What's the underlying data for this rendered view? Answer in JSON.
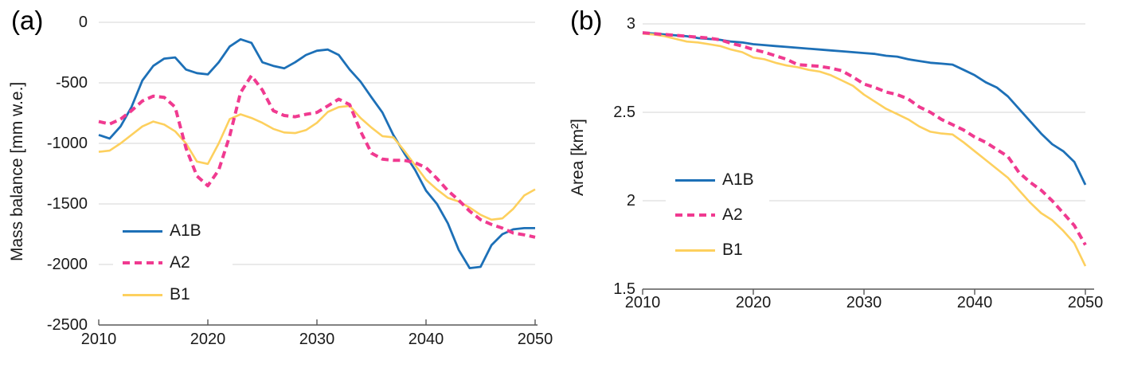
{
  "figure": {
    "background": "#ffffff",
    "panels": [
      {
        "panel_label": "(a)"
      },
      {
        "panel_label": "(b)"
      }
    ]
  },
  "colors": {
    "a1b_blue": "#1d70b7",
    "a2_pink": "#f03a90",
    "b1_yellow": "#fdd05e",
    "gridline": "#d6d6d6",
    "axis": "#595959",
    "text": "#1a1a1a"
  },
  "chart_data": [
    {
      "type": "line",
      "panel": "a",
      "title": "",
      "xlabel": "",
      "ylabel": "Mass balance [mm w.e.]",
      "xlim": [
        2010,
        2050
      ],
      "ylim": [
        -2500,
        0
      ],
      "x_ticks": [
        2010,
        2020,
        2030,
        2040,
        2050
      ],
      "y_ticks": [
        0,
        -500,
        -1000,
        -1500,
        -2000,
        -2500
      ],
      "grid": true,
      "legend_position": "inside lower-left",
      "x": [
        2010,
        2011,
        2012,
        2013,
        2014,
        2015,
        2016,
        2017,
        2018,
        2019,
        2020,
        2021,
        2022,
        2023,
        2024,
        2025,
        2026,
        2027,
        2028,
        2029,
        2030,
        2031,
        2032,
        2033,
        2034,
        2035,
        2036,
        2037,
        2038,
        2039,
        2040,
        2041,
        2042,
        2043,
        2044,
        2045,
        2046,
        2047,
        2048,
        2049,
        2050
      ],
      "series": [
        {
          "name": "A1B",
          "color": "#1d70b7",
          "style": "solid",
          "values": [
            -930,
            -960,
            -860,
            -700,
            -480,
            -360,
            -300,
            -290,
            -390,
            -420,
            -430,
            -330,
            -200,
            -140,
            -170,
            -330,
            -360,
            -380,
            -330,
            -270,
            -235,
            -225,
            -270,
            -390,
            -490,
            -620,
            -745,
            -930,
            -1080,
            -1220,
            -1390,
            -1500,
            -1660,
            -1880,
            -2030,
            -2020,
            -1840,
            -1750,
            -1710,
            -1700,
            -1700
          ]
        },
        {
          "name": "A2",
          "color": "#f03a90",
          "style": "dashed",
          "values": [
            -820,
            -840,
            -800,
            -730,
            -650,
            -610,
            -620,
            -700,
            -1040,
            -1270,
            -1350,
            -1220,
            -940,
            -580,
            -440,
            -560,
            -730,
            -770,
            -780,
            -760,
            -745,
            -690,
            -635,
            -680,
            -900,
            -1080,
            -1130,
            -1140,
            -1140,
            -1160,
            -1200,
            -1290,
            -1390,
            -1470,
            -1560,
            -1630,
            -1670,
            -1700,
            -1740,
            -1755,
            -1775
          ]
        },
        {
          "name": "B1",
          "color": "#fdd05e",
          "style": "solid",
          "values": [
            -1070,
            -1060,
            -1000,
            -930,
            -860,
            -820,
            -845,
            -900,
            -1000,
            -1150,
            -1170,
            -1000,
            -800,
            -760,
            -790,
            -830,
            -880,
            -910,
            -915,
            -890,
            -830,
            -740,
            -700,
            -690,
            -790,
            -870,
            -940,
            -950,
            -1060,
            -1180,
            -1300,
            -1380,
            -1450,
            -1480,
            -1530,
            -1590,
            -1630,
            -1620,
            -1540,
            -1430,
            -1380
          ]
        }
      ]
    },
    {
      "type": "line",
      "panel": "b",
      "title": "",
      "xlabel": "",
      "ylabel": "Area [km²]",
      "xlim": [
        2010,
        2050
      ],
      "ylim": [
        1.5,
        3
      ],
      "x_ticks": [
        2010,
        2020,
        2030,
        2040,
        2050
      ],
      "y_ticks": [
        3,
        2.5,
        2,
        1.5
      ],
      "grid": true,
      "legend_position": "inside center-left",
      "x": [
        2010,
        2011,
        2012,
        2013,
        2014,
        2015,
        2016,
        2017,
        2018,
        2019,
        2020,
        2021,
        2022,
        2023,
        2024,
        2025,
        2026,
        2027,
        2028,
        2029,
        2030,
        2031,
        2032,
        2033,
        2034,
        2035,
        2036,
        2037,
        2038,
        2039,
        2040,
        2041,
        2042,
        2043,
        2044,
        2045,
        2046,
        2047,
        2048,
        2049,
        2050
      ],
      "series": [
        {
          "name": "A1B",
          "color": "#1d70b7",
          "style": "solid",
          "values": [
            2.95,
            2.945,
            2.94,
            2.935,
            2.93,
            2.92,
            2.915,
            2.91,
            2.9,
            2.895,
            2.885,
            2.88,
            2.875,
            2.87,
            2.865,
            2.86,
            2.855,
            2.85,
            2.845,
            2.84,
            2.835,
            2.83,
            2.82,
            2.815,
            2.8,
            2.79,
            2.78,
            2.775,
            2.77,
            2.74,
            2.71,
            2.67,
            2.64,
            2.59,
            2.52,
            2.45,
            2.38,
            2.32,
            2.28,
            2.22,
            2.09
          ]
        },
        {
          "name": "A2",
          "color": "#f03a90",
          "style": "dashed",
          "values": [
            2.95,
            2.945,
            2.94,
            2.935,
            2.93,
            2.925,
            2.92,
            2.91,
            2.89,
            2.875,
            2.855,
            2.84,
            2.82,
            2.8,
            2.77,
            2.765,
            2.76,
            2.75,
            2.735,
            2.7,
            2.66,
            2.64,
            2.615,
            2.6,
            2.575,
            2.53,
            2.5,
            2.46,
            2.43,
            2.4,
            2.36,
            2.33,
            2.29,
            2.25,
            2.16,
            2.105,
            2.06,
            2.0,
            1.93,
            1.86,
            1.75
          ]
        },
        {
          "name": "B1",
          "color": "#fdd05e",
          "style": "solid",
          "values": [
            2.945,
            2.94,
            2.93,
            2.915,
            2.9,
            2.895,
            2.885,
            2.875,
            2.855,
            2.84,
            2.81,
            2.8,
            2.78,
            2.765,
            2.755,
            2.74,
            2.73,
            2.71,
            2.68,
            2.65,
            2.6,
            2.56,
            2.52,
            2.49,
            2.46,
            2.42,
            2.39,
            2.38,
            2.375,
            2.33,
            2.28,
            2.23,
            2.18,
            2.13,
            2.06,
            1.99,
            1.93,
            1.89,
            1.83,
            1.76,
            1.63
          ]
        }
      ]
    }
  ]
}
